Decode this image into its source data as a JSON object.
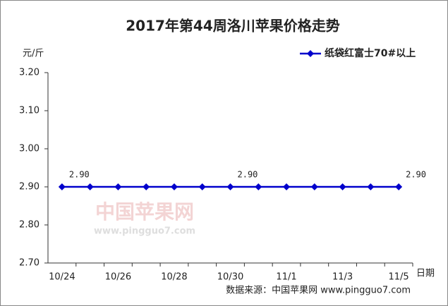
{
  "chart_data": {
    "type": "line",
    "title": "2017年第44周洛川苹果价格走势",
    "y_label": "元/斤",
    "x_label": "日期",
    "source": "数据来源：中国苹果网 www.pingguo7.com",
    "watermark": {
      "name": "中国苹果网",
      "url": "www.pingguo7.com"
    },
    "categories": [
      "10/24",
      null,
      "10/26",
      null,
      "10/28",
      null,
      "10/30",
      null,
      "11/1",
      null,
      "11/3",
      null,
      "11/5"
    ],
    "series": [
      {
        "name": "纸袋红富士70#以上",
        "color": "#0000cc",
        "values": [
          2.9,
          2.9,
          2.9,
          2.9,
          2.9,
          2.9,
          2.9,
          2.9,
          2.9,
          2.9,
          2.9,
          2.9,
          2.9
        ],
        "value_labels": [
          "2.90",
          null,
          null,
          null,
          null,
          null,
          "2.90",
          null,
          null,
          null,
          null,
          null,
          "2.90"
        ]
      }
    ],
    "ylim": [
      2.7,
      3.2
    ],
    "yticks": [
      {
        "value": 2.7,
        "label": "2.70"
      },
      {
        "value": 2.8,
        "label": "2.80"
      },
      {
        "value": 2.9,
        "label": "2.90"
      },
      {
        "value": 3.0,
        "label": "3.00"
      },
      {
        "value": 3.1,
        "label": "3.10"
      },
      {
        "value": 3.2,
        "label": "3.20"
      }
    ],
    "legend": "top-right",
    "grid": false
  }
}
